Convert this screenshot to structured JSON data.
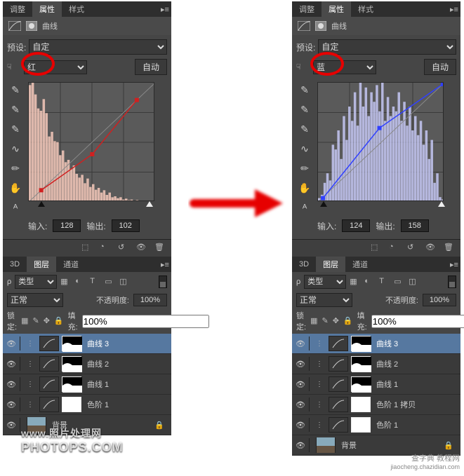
{
  "colors": {
    "panel_bg": "#3a3a3a",
    "panel_bg2": "#464646",
    "highlight_row": "#5678a0",
    "annotation_red": "#e60000",
    "text": "#cccccc"
  },
  "arrow": {
    "color": "#e60000"
  },
  "left_panel": {
    "tabs": [
      "调整",
      "属性",
      "样式"
    ],
    "active_tab_index": 1,
    "title": "曲线",
    "preset_label": "预设:",
    "preset_value": "自定",
    "channel_value": "红",
    "auto_label": "自动",
    "curve": {
      "type": "curves",
      "hist_color": "#f6c9bb",
      "fill_opacity": 0.85,
      "curve_color": "#d02020",
      "grid_color": "#3a3a3a",
      "bg_color": "#5a5a5a",
      "xlim": [
        0,
        255
      ],
      "ylim": [
        0,
        255
      ],
      "hist_values": [
        250,
        255,
        230,
        200,
        195,
        220,
        190,
        140,
        150,
        130,
        128,
        100,
        110,
        85,
        90,
        70,
        78,
        60,
        52,
        58,
        40,
        50,
        32,
        38,
        26,
        30,
        20,
        25,
        15,
        20,
        10,
        12,
        8,
        10,
        5,
        7,
        4,
        5,
        3,
        4,
        2,
        3,
        2,
        2,
        1,
        1
      ],
      "points": [
        [
          25,
          25
        ],
        [
          128,
          102
        ],
        [
          218,
          218
        ]
      ],
      "input_label": "输入:",
      "input_value": 128,
      "output_label": "输出:",
      "output_value": 102,
      "slider_black_pos": 0.1,
      "slider_white_pos": 0.96
    },
    "tool_icons": [
      "eyedropper-black",
      "eyedropper-gray",
      "eyedropper-white",
      "curve-smooth",
      "pencil",
      "hand",
      "char-tool"
    ],
    "layers": {
      "tabs": [
        "3D",
        "图层",
        "通道"
      ],
      "active_tab_index": 1,
      "filter_label": "类型",
      "blend_mode": "正常",
      "opacity_label": "不透明度:",
      "opacity_value": "100%",
      "lock_label": "锁定:",
      "fill_label": "填充:",
      "fill_value": "100%",
      "items": [
        {
          "name": "曲线 3",
          "type": "adj",
          "mask": "partial",
          "selected": true
        },
        {
          "name": "曲线 2",
          "type": "adj",
          "mask": "partial"
        },
        {
          "name": "曲线 1",
          "type": "adj",
          "mask": "partial"
        },
        {
          "name": "色阶 1",
          "type": "adj",
          "mask": "white"
        },
        {
          "name": "背景",
          "type": "image",
          "mask": "",
          "locked": true
        }
      ]
    }
  },
  "right_panel": {
    "tabs": [
      "调整",
      "属性",
      "样式"
    ],
    "active_tab_index": 1,
    "title": "曲线",
    "preset_label": "预设:",
    "preset_value": "自定",
    "channel_value": "蓝",
    "auto_label": "自动",
    "curve": {
      "type": "curves",
      "hist_color": "#c6c8f4",
      "fill_opacity": 0.85,
      "curve_color": "#3040ff",
      "grid_color": "#3a3a3a",
      "bg_color": "#5a5a5a",
      "xlim": [
        0,
        255
      ],
      "ylim": [
        0,
        255
      ],
      "hist_values": [
        8,
        15,
        40,
        60,
        45,
        120,
        110,
        150,
        90,
        180,
        130,
        200,
        170,
        230,
        160,
        250,
        200,
        240,
        180,
        230,
        210,
        245,
        190,
        250,
        170,
        220,
        180,
        200,
        190,
        230,
        170,
        210,
        160,
        200,
        150,
        180,
        140,
        170,
        120,
        150,
        90,
        130,
        40,
        60,
        10,
        5
      ],
      "points": [
        [
          10,
          8
        ],
        [
          124,
          158
        ],
        [
          252,
          252
        ]
      ],
      "input_label": "输入:",
      "input_value": 124,
      "output_label": "输出:",
      "output_value": 158,
      "slider_black_pos": 0.04,
      "slider_white_pos": 0.985
    },
    "tool_icons": [
      "eyedropper-black",
      "eyedropper-gray",
      "eyedropper-white",
      "curve-smooth",
      "pencil",
      "hand",
      "char-tool"
    ],
    "layers": {
      "tabs": [
        "3D",
        "图层",
        "通道"
      ],
      "active_tab_index": 1,
      "filter_label": "类型",
      "blend_mode": "正常",
      "opacity_label": "不透明度:",
      "opacity_value": "100%",
      "lock_label": "锁定:",
      "fill_label": "填充:",
      "fill_value": "100%",
      "items": [
        {
          "name": "曲线 3",
          "type": "adj",
          "mask": "partial",
          "selected": true
        },
        {
          "name": "曲线 2",
          "type": "adj",
          "mask": "partial"
        },
        {
          "name": "曲线 1",
          "type": "adj",
          "mask": "partial"
        },
        {
          "name": "色阶 1 拷贝",
          "type": "adj",
          "mask": "white"
        },
        {
          "name": "色阶 1",
          "type": "adj",
          "mask": "white"
        },
        {
          "name": "背景",
          "type": "image",
          "mask": "",
          "locked": true
        }
      ]
    }
  },
  "watermark_left": {
    "line1": "www.照片处理网",
    "line2": "PHOTOPS.COM"
  },
  "watermark_right": {
    "line1": "查字典 教程网",
    "line2": "jiaocheng.chazidian.com"
  }
}
